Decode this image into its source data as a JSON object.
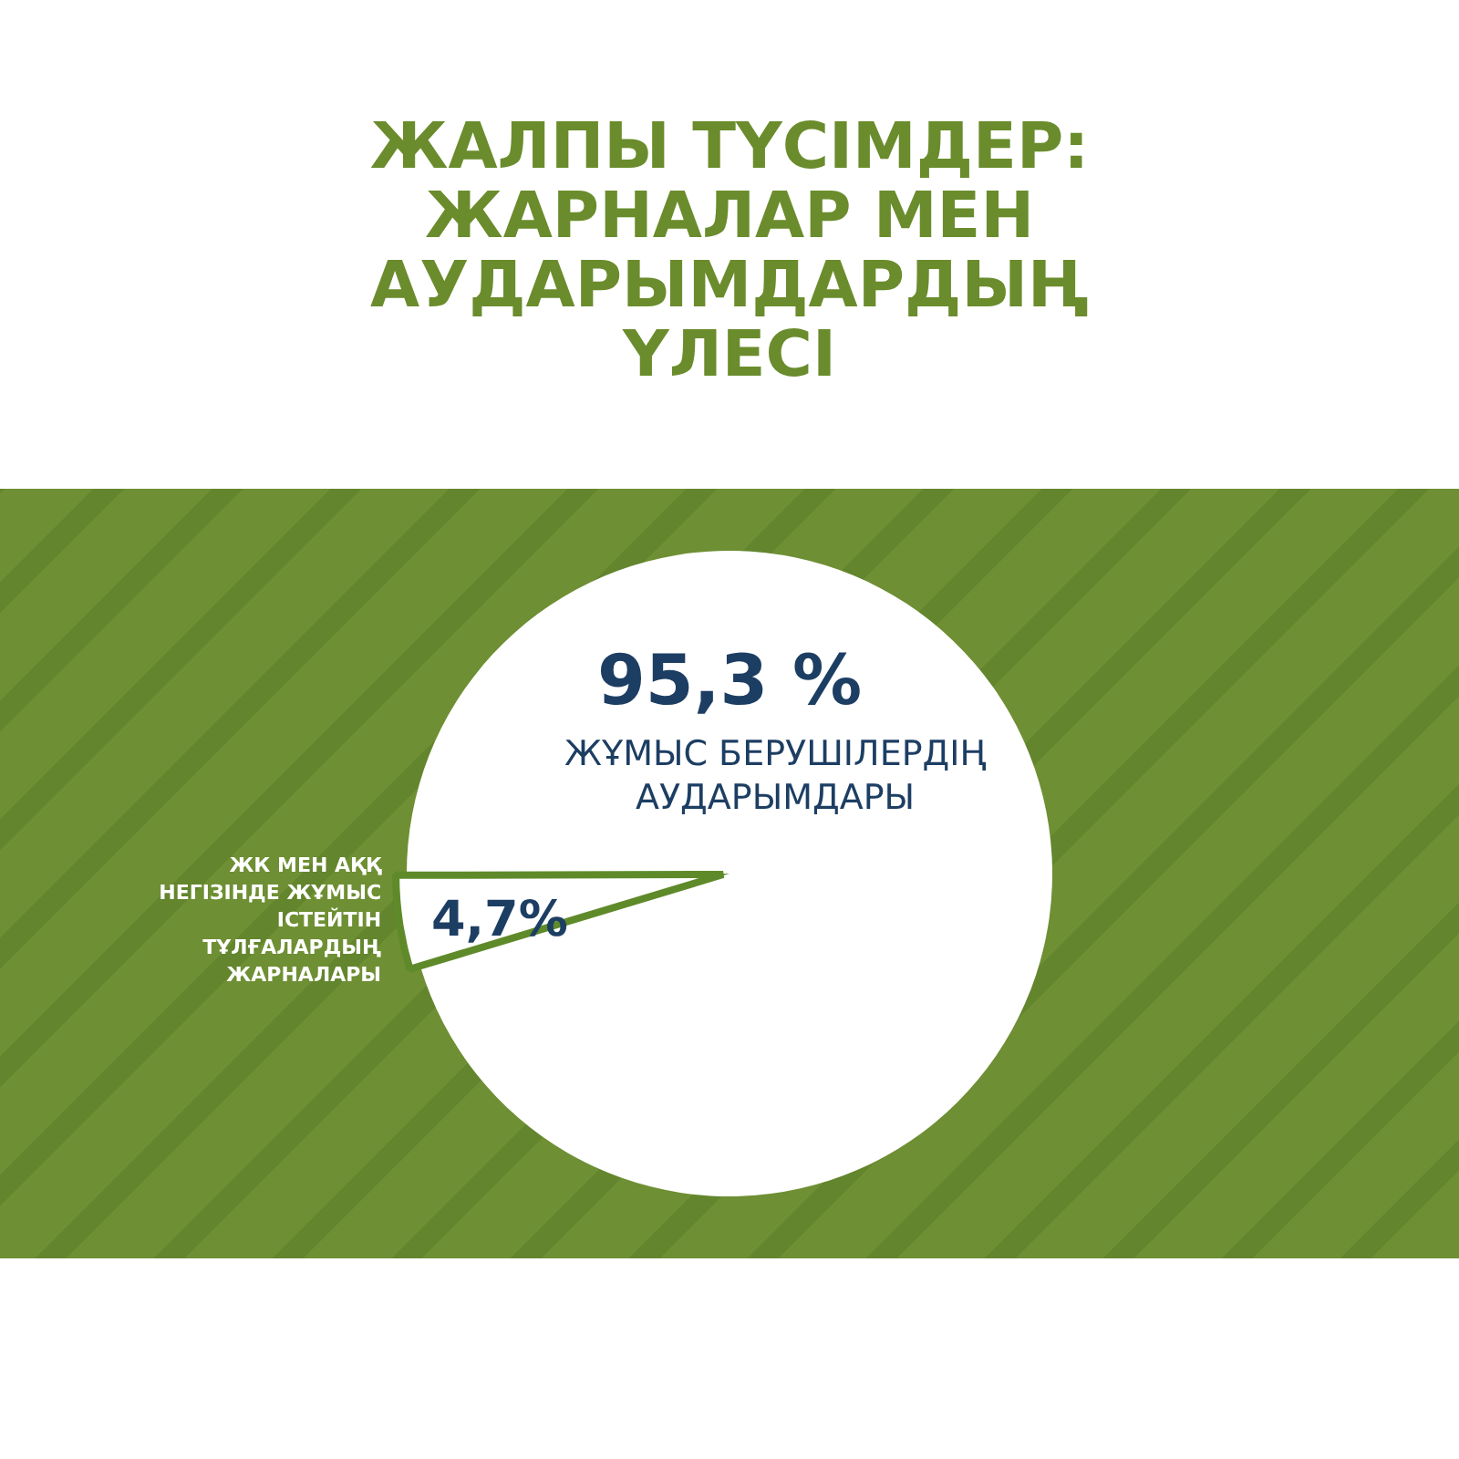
{
  "chart_data": {
    "type": "pie",
    "title": "ЖАЛПЫ ТҮСІМДЕР: ЖАРНАЛАР МЕН АУДАРЫМДАРДЫҢ ҮЛЕСІ",
    "categories": [
      "ЖҰМЫС БЕРУШІЛЕРДІҢ АУДАРЫМДАРЫ",
      "ЖК МЕН АҚҚ НЕГІЗІНДЕ ЖҰМЫС ІСТЕЙТІН ТҰЛҒАЛАРДЫҢ ЖАРНАЛАРЫ"
    ],
    "values": [
      95.3,
      4.7
    ],
    "value_labels": [
      "95,3 %",
      "4,7%"
    ],
    "colors": [
      "#ffffff",
      "#ffffff"
    ],
    "legend": false
  }
}
